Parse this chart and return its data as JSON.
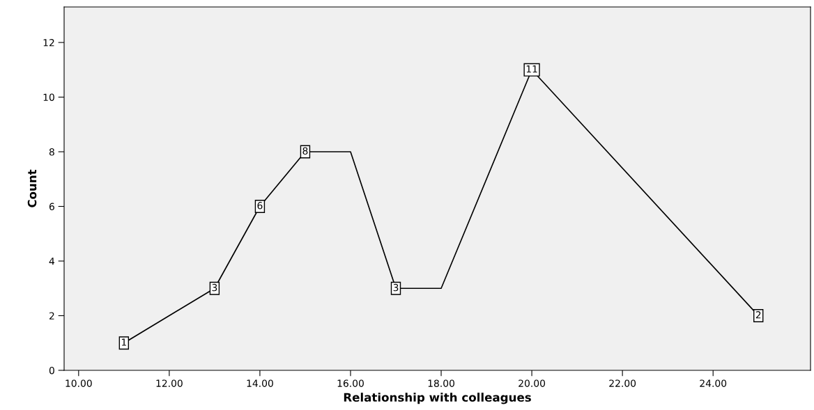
{
  "chart_data": {
    "type": "line",
    "xlabel": "Relationship with colleagues",
    "ylabel": "Count",
    "x": [
      11,
      13,
      14,
      15,
      16,
      17,
      18,
      20,
      25
    ],
    "values": [
      1,
      3,
      6,
      8,
      8,
      3,
      3,
      11,
      2
    ],
    "value_labels": [
      "1",
      "3",
      "6",
      "8",
      null,
      "3",
      null,
      "11",
      "2"
    ],
    "color": "#000000",
    "xlim": [
      9.68,
      26.15
    ],
    "ylim": [
      0,
      13.3
    ],
    "xticks": [
      {
        "value": 10,
        "label": "10.00"
      },
      {
        "value": 12,
        "label": "12.00"
      },
      {
        "value": 14,
        "label": "14.00"
      },
      {
        "value": 16,
        "label": "16.00"
      },
      {
        "value": 18,
        "label": "18.00"
      },
      {
        "value": 20,
        "label": "20.00"
      },
      {
        "value": 22,
        "label": "22.00"
      },
      {
        "value": 24,
        "label": "24.00"
      }
    ],
    "yticks": [
      0,
      2,
      4,
      6,
      8,
      10,
      12
    ],
    "grid": false,
    "line_style": "solid"
  }
}
